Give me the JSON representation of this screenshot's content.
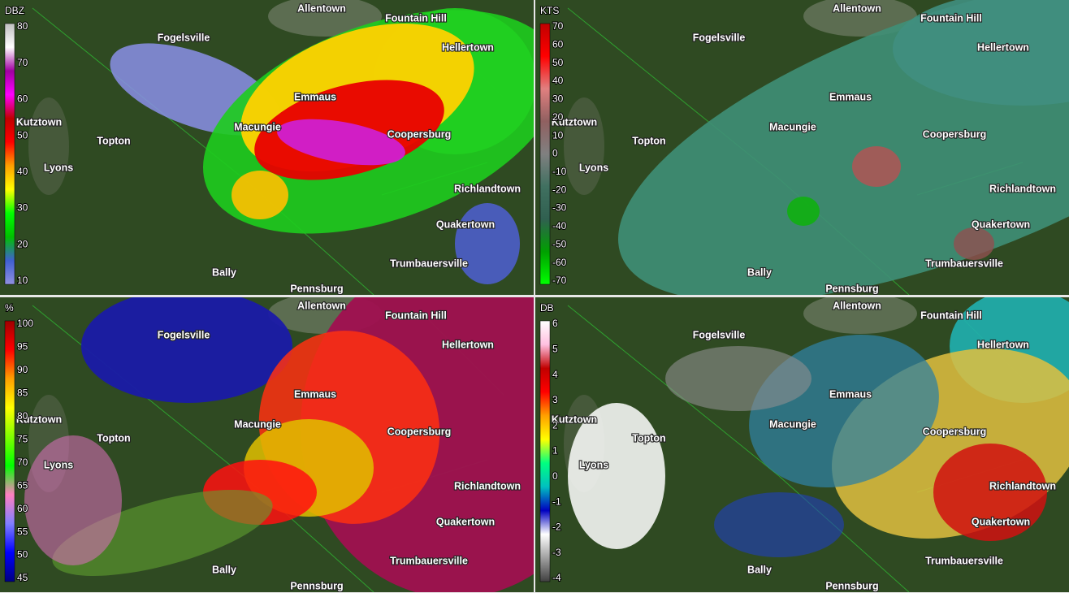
{
  "places": [
    "Allentown",
    "Fountain Hill",
    "Fogelsville",
    "Hellertown",
    "Emmaus",
    "Kutztown",
    "Macungie",
    "Coopersburg",
    "Topton",
    "Lyons",
    "Richlandtown",
    "Quakertown",
    "Trumbauersville",
    "Bally",
    "Pennsburg"
  ],
  "panels": [
    {
      "unit": "DBZ",
      "scale": [
        80,
        70,
        60,
        50,
        40,
        30,
        20,
        10
      ]
    },
    {
      "unit": "KTS",
      "scale": [
        70,
        60,
        50,
        40,
        30,
        20,
        10,
        0,
        -10,
        -20,
        -30,
        -40,
        -50,
        -60,
        -70
      ]
    },
    {
      "unit": "%",
      "scale": [
        100,
        95,
        90,
        85,
        80,
        75,
        70,
        65,
        60,
        55,
        50,
        45
      ]
    },
    {
      "unit": "DB",
      "scale": [
        6,
        5,
        4,
        3,
        2,
        1,
        0,
        -1,
        -2,
        -3,
        -4
      ]
    }
  ]
}
